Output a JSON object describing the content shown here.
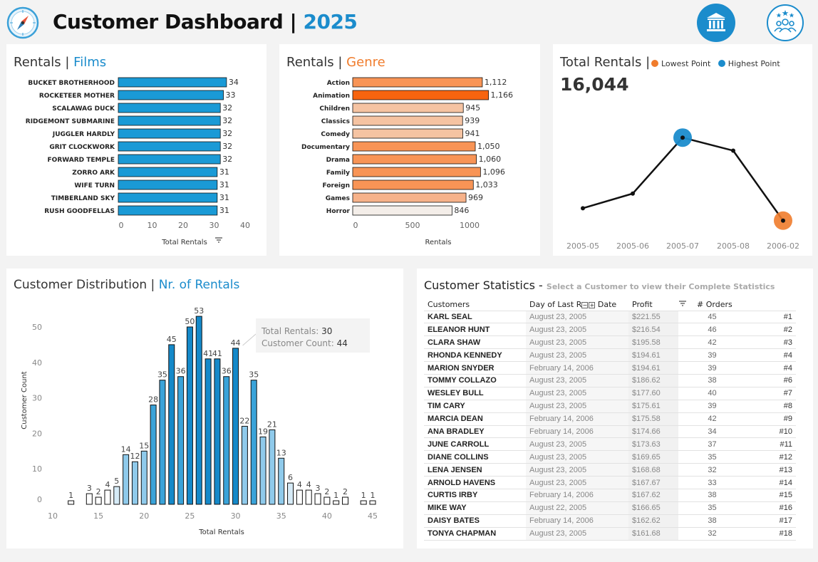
{
  "header": {
    "title": "Customer Dashboard |",
    "year": "2025",
    "logo_icon": "compass-icon",
    "right_icons": [
      "bank-icon",
      "customers-group-icon"
    ]
  },
  "films_card": {
    "title_prefix": "Rentals |",
    "title_highlight": "Films",
    "xlabel": "Total Rentals"
  },
  "genre_card": {
    "title_prefix": "Rentals |",
    "title_highlight": "Genre",
    "xlabel": "Rentals"
  },
  "total_card": {
    "title": "Total Rentals |",
    "legend_low": "Lowest Point",
    "legend_high": "Highest Point",
    "total_value": "16,044"
  },
  "dist_card": {
    "title_prefix": "Customer Distribution |",
    "title_highlight": "Nr. of Rentals",
    "xlabel": "Total Rentals",
    "ylabel": "Customer Count",
    "tooltip": {
      "rentals_label": "Total Rentals:",
      "rentals_value": "30",
      "count_label": "Customer Count:",
      "count_value": "44"
    }
  },
  "stats_card": {
    "title": "Customer Statistics -",
    "subtitle": "Select  a Customer to view their Complete Statistics",
    "columns": [
      "Customers",
      "Day of Last R",
      "Date",
      "Profit",
      "",
      "# Orders"
    ],
    "rows": [
      [
        "KARL SEAL",
        "August 23, 2005",
        "$221.55",
        "45",
        "#1"
      ],
      [
        "ELEANOR HUNT",
        "August 23, 2005",
        "$216.54",
        "46",
        "#2"
      ],
      [
        "CLARA SHAW",
        "August 23, 2005",
        "$195.58",
        "42",
        "#3"
      ],
      [
        "RHONDA KENNEDY",
        "August 23, 2005",
        "$194.61",
        "39",
        "#4"
      ],
      [
        "MARION SNYDER",
        "February 14, 2006",
        "$194.61",
        "39",
        "#4"
      ],
      [
        "TOMMY COLLAZO",
        "August 23, 2005",
        "$186.62",
        "38",
        "#6"
      ],
      [
        "WESLEY BULL",
        "August 23, 2005",
        "$177.60",
        "40",
        "#7"
      ],
      [
        "TIM CARY",
        "August 23, 2005",
        "$175.61",
        "39",
        "#8"
      ],
      [
        "MARCIA DEAN",
        "February 14, 2006",
        "$175.58",
        "42",
        "#9"
      ],
      [
        "ANA BRADLEY",
        "February 14, 2006",
        "$174.66",
        "34",
        "#10"
      ],
      [
        "JUNE CARROLL",
        "August 23, 2005",
        "$173.63",
        "37",
        "#11"
      ],
      [
        "DIANE COLLINS",
        "August 23, 2005",
        "$169.65",
        "35",
        "#12"
      ],
      [
        "LENA JENSEN",
        "August 23, 2005",
        "$168.68",
        "32",
        "#13"
      ],
      [
        "ARNOLD HAVENS",
        "August 23, 2005",
        "$167.67",
        "33",
        "#14"
      ],
      [
        "CURTIS IRBY",
        "February 14, 2006",
        "$167.62",
        "38",
        "#15"
      ],
      [
        "MIKE WAY",
        "August 22, 2005",
        "$166.65",
        "35",
        "#16"
      ],
      [
        "DAISY BATES",
        "February 14, 2006",
        "$162.62",
        "38",
        "#17"
      ],
      [
        "TONYA CHAPMAN",
        "August 23, 2005",
        "$161.68",
        "32",
        "#18"
      ]
    ]
  },
  "colors": {
    "blue": "#1b8ccc",
    "bar_blue": "#1a9ad6",
    "orange": "#f07c2c",
    "dark_orange": "#f7640f",
    "peach": "#f5c3a2",
    "light_peach": "#f9ddc8"
  },
  "chart_data": [
    {
      "type": "bar",
      "orientation": "horizontal",
      "categories": [
        "BUCKET BROTHERHOOD",
        "ROCKETEER MOTHER",
        "SCALAWAG DUCK",
        "RIDGEMONT SUBMARINE",
        "JUGGLER HARDLY",
        "GRIT CLOCKWORK",
        "FORWARD TEMPLE",
        "ZORRO ARK",
        "WIFE TURN",
        "TIMBERLAND SKY",
        "RUSH GOODFELLAS"
      ],
      "values": [
        34,
        33,
        32,
        32,
        32,
        32,
        32,
        31,
        31,
        31,
        31
      ],
      "xlim": [
        0,
        40
      ],
      "xticks": [
        0,
        10,
        20,
        30,
        40
      ],
      "xlabel": "Total Rentals"
    },
    {
      "type": "bar",
      "orientation": "horizontal",
      "categories": [
        "Action",
        "Animation",
        "Children",
        "Classics",
        "Comedy",
        "Documentary",
        "Drama",
        "Family",
        "Foreign",
        "Games",
        "Horror"
      ],
      "values": [
        1112,
        1166,
        945,
        939,
        941,
        1050,
        1060,
        1096,
        1033,
        969,
        846
      ],
      "labels": [
        "1,112",
        "1,166",
        "945",
        "939",
        "941",
        "1,050",
        "1,060",
        "1,096",
        "1,033",
        "969",
        "846"
      ],
      "xlim": [
        0,
        1200
      ],
      "xticks": [
        0,
        500,
        1000
      ],
      "xlabel": "Rentals"
    },
    {
      "type": "line",
      "x": [
        "2005-05",
        "2005-06",
        "2005-07",
        "2005-08",
        "2006-02"
      ],
      "y": [
        1156,
        2311,
        6709,
        5686,
        182
      ],
      "highest_index": 2,
      "lowest_index": 4
    },
    {
      "type": "bar",
      "x": [
        12,
        14,
        15,
        16,
        17,
        18,
        19,
        20,
        21,
        22,
        23,
        24,
        25,
        26,
        27,
        28,
        29,
        30,
        31,
        32,
        33,
        34,
        35,
        36,
        37,
        38,
        39,
        40,
        41,
        42,
        44,
        45
      ],
      "values": [
        1,
        3,
        2,
        4,
        5,
        14,
        12,
        15,
        28,
        35,
        45,
        36,
        50,
        53,
        41,
        41,
        36,
        44,
        22,
        35,
        19,
        21,
        13,
        6,
        4,
        4,
        3,
        2,
        1,
        2,
        1,
        1
      ],
      "xlim": [
        10,
        46
      ],
      "xticks": [
        10,
        15,
        20,
        25,
        30,
        35,
        40,
        45
      ],
      "ylim": [
        0,
        56
      ],
      "yticks": [
        0,
        10,
        20,
        30,
        40,
        50
      ],
      "xlabel": "Total Rentals",
      "ylabel": "Customer Count"
    }
  ]
}
